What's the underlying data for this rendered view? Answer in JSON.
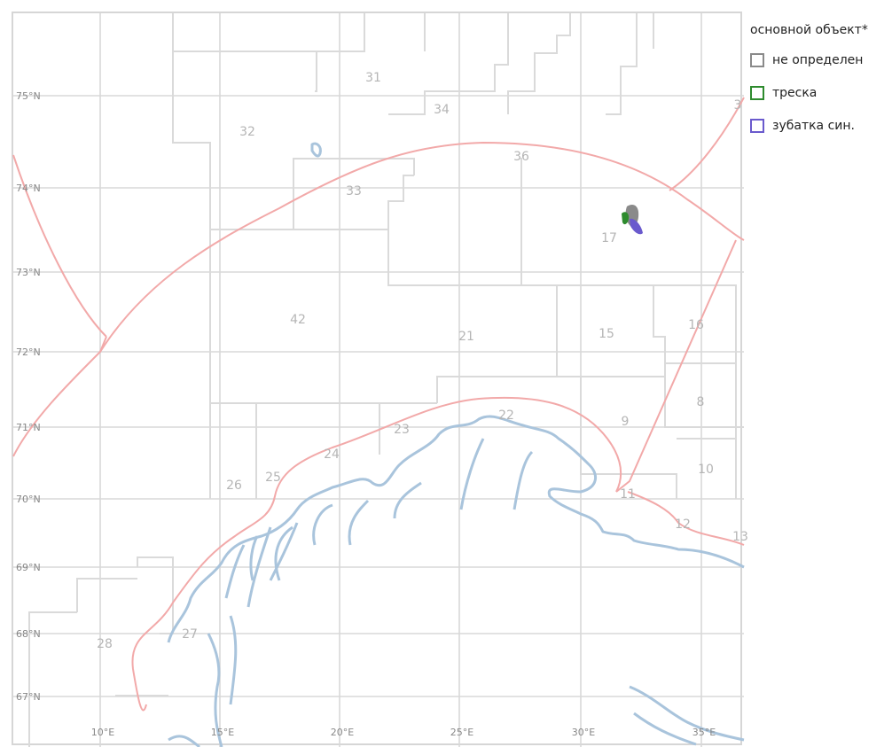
{
  "legend": {
    "title": "основной объект*",
    "items": [
      {
        "label": "не определен",
        "color": "#8a8a8a"
      },
      {
        "label": "треска",
        "color": "#2e8b2e"
      },
      {
        "label": "зубатка син.",
        "color": "#6a5acd"
      }
    ]
  },
  "map": {
    "colors": {
      "grid": "#d8d8d8",
      "zone": "#dadada",
      "coast": "#a9c4dc",
      "boundary": "#f2a9a9",
      "label": "#b5b5b5"
    },
    "lat_labels": [
      "75°N",
      "74°N",
      "73°N",
      "72°N",
      "71°N",
      "70°N",
      "69°N",
      "68°N",
      "67°N"
    ],
    "lon_labels": [
      "10°E",
      "15°E",
      "20°E",
      "25°E",
      "30°E",
      "35°E"
    ],
    "zone_labels": [
      "31",
      "32",
      "33",
      "34",
      "36",
      "17",
      "42",
      "21",
      "15",
      "16",
      "8",
      "9",
      "22",
      "23",
      "24",
      "25",
      "26",
      "10",
      "11",
      "12",
      "13",
      "27",
      "28",
      "3"
    ]
  }
}
